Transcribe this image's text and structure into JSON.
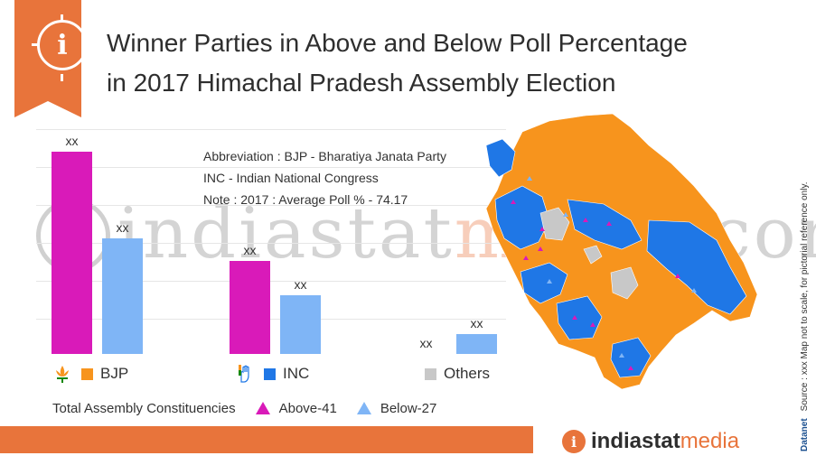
{
  "header": {
    "title_line1": "Winner Parties in Above and Below Poll Percentage",
    "title_line2": "in 2017 Himachal Pradesh Assembly Election"
  },
  "notes": {
    "abbreviation_bjp": "Abbreviation : BJP - Bharatiya Janata Party",
    "abbreviation_inc": "INC - Indian National Congress",
    "average_poll": "Note :  2017 : Average Poll % - 74.17"
  },
  "watermark": {
    "main": "indiastat",
    "accent": "media",
    "tail": ".com"
  },
  "chart_data": {
    "type": "bar",
    "categories": [
      "BJP",
      "INC",
      "Others"
    ],
    "series": [
      {
        "name": "Above-41",
        "color": "#d91ab9",
        "value_labels": [
          "xx",
          "xx",
          "xx"
        ]
      },
      {
        "name": "Below-27",
        "color": "#7fb5f6",
        "value_labels": [
          "xx",
          "xx",
          "xx"
        ]
      }
    ],
    "relative_heights": {
      "Above-41": [
        1.0,
        0.46,
        0.0
      ],
      "Below-27": [
        0.57,
        0.29,
        0.1
      ]
    },
    "legend": [
      {
        "label": "BJP",
        "color": "#f7941d",
        "symbol": "lotus-icon"
      },
      {
        "label": "INC",
        "color": "#1f77e6",
        "symbol": "hand-icon"
      },
      {
        "label": "Others",
        "color": "#c8c8c8",
        "symbol": ""
      }
    ],
    "constituency_legend": {
      "label": "Total Assembly Constituencies",
      "items": [
        {
          "label": "Above-41",
          "color": "#d91ab9"
        },
        {
          "label": "Below-27",
          "color": "#7fb5f6"
        }
      ]
    },
    "grid": true
  },
  "map": {
    "colors": {
      "bjp": "#f7941d",
      "inc": "#1f77e6",
      "others": "#c8c8c8"
    }
  },
  "footer": {
    "logo_main": "indiastat",
    "logo_accent": "media"
  },
  "side_note": {
    "brand": "Datanet",
    "text": "Source : xxx   Map not to scale, for pictorial reference only."
  }
}
